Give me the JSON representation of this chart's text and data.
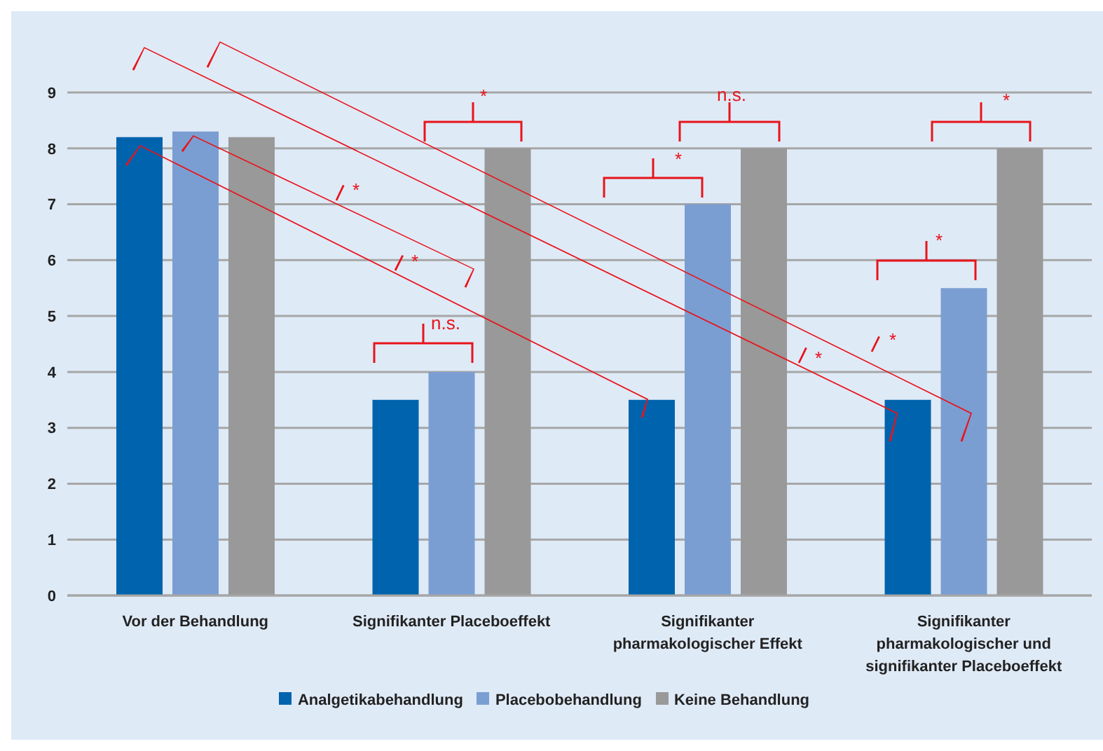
{
  "chart_data": {
    "type": "bar",
    "categories": [
      "Vor der Behandlung",
      "Signifikanter Placeboeffekt",
      "Signifikanter pharmakologischer Effekt",
      "Signifikanter pharmakologischer und signifikanter Placeboeffekt"
    ],
    "series": [
      {
        "name": "Analgetikabehandlung",
        "color": "#0063ad",
        "values": [
          8.2,
          3.5,
          3.5,
          3.5
        ]
      },
      {
        "name": "Placebobehandlung",
        "color": "#7b9ed2",
        "values": [
          8.3,
          4,
          7,
          5.5
        ]
      },
      {
        "name": "Keine Behandlung",
        "color": "#999999",
        "values": [
          8.2,
          8,
          8,
          8
        ]
      }
    ],
    "ylim": [
      0,
      9
    ],
    "yticks": [
      0,
      1,
      2,
      3,
      4,
      5,
      6,
      7,
      8,
      9
    ],
    "grid": "y",
    "legend": "bottom",
    "annotations": [
      "*",
      "n.s.",
      "*",
      "n.s.",
      "*",
      "*",
      "*",
      "*",
      "*",
      "*"
    ]
  }
}
